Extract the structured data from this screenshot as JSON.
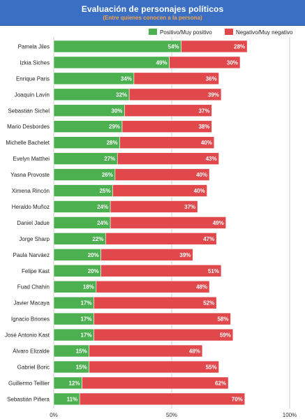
{
  "header": {
    "title": "Evaluación de personajes políticos",
    "subtitle": "(Entre quienes conocen a la persona)"
  },
  "colors": {
    "positive": "#4caf50",
    "negative": "#e0484c",
    "header_bg": "#3b6fc4",
    "subtitle": "#f2a24a",
    "grid": "#cccccc"
  },
  "chart_data": {
    "type": "bar",
    "orientation": "horizontal",
    "stacked": true,
    "categories": [
      "Pamela Jiles",
      "Izkia Siches",
      "Enrique Paris",
      "Joaquín Lavín",
      "Sebastián Sichel",
      "Mario Desbordes",
      "Michelle Bachelet",
      "Evelyn Matthei",
      "Yasna Provoste",
      "Ximena Rincón",
      "Heraldo Muñoz",
      "Daniel Jadue",
      "Jorge Sharp",
      "Paula Narváez",
      "Felipe Kast",
      "Fuad Chahín",
      "Javier Macaya",
      "Ignacio Briones",
      "José Antonio Kast",
      "Álvaro Elizalde",
      "Gabriel Boric",
      "Guillermo Teillier",
      "Sebastián Piñera"
    ],
    "series": [
      {
        "name": "Positivo/Muy positivo",
        "color": "#4caf50",
        "values": [
          54,
          49,
          34,
          32,
          30,
          29,
          28,
          27,
          26,
          25,
          24,
          24,
          22,
          20,
          20,
          18,
          17,
          17,
          17,
          15,
          15,
          12,
          11
        ]
      },
      {
        "name": "Negativo/Muy negativo",
        "color": "#e0484c",
        "values": [
          28,
          30,
          36,
          39,
          37,
          38,
          40,
          43,
          40,
          40,
          37,
          49,
          47,
          39,
          51,
          48,
          52,
          58,
          59,
          48,
          55,
          62,
          70
        ]
      }
    ],
    "xlim": [
      0,
      100
    ],
    "xticks": [
      "0%",
      "50%",
      "100%"
    ],
    "value_suffix": "%",
    "legend_position": "top-right",
    "grid": true
  }
}
